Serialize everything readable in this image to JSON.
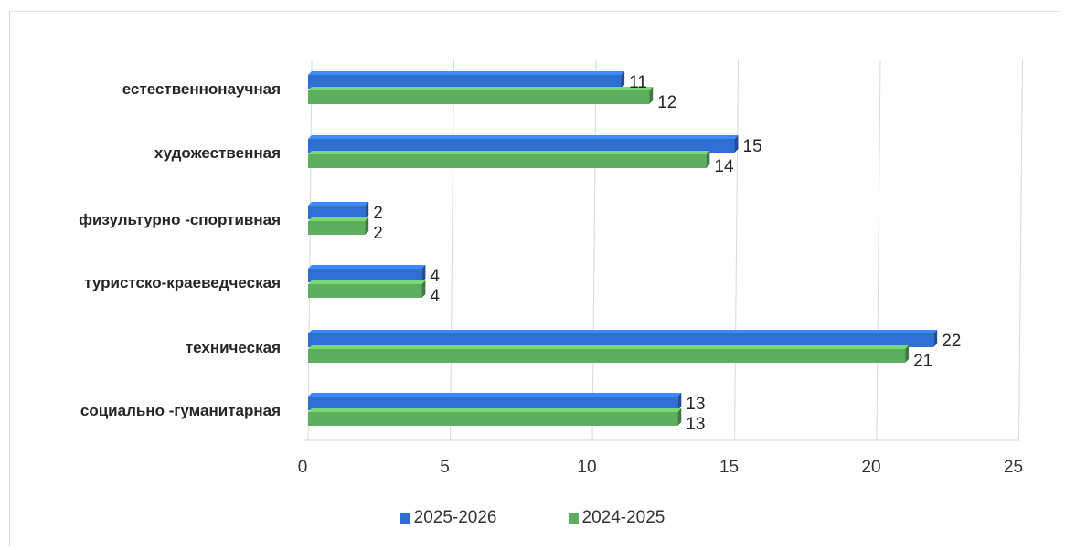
{
  "chart_data": {
    "type": "bar",
    "orientation": "horizontal",
    "title": "",
    "xlabel": "",
    "ylabel": "",
    "categories": [
      "естественнонаучная",
      "художественная",
      "физультурно -спортивная",
      "туристско-краеведческая",
      "техническая",
      "социально -гуманитарная"
    ],
    "series": [
      {
        "name": "2025-2026",
        "color": "#2f6fd4",
        "values": [
          11,
          15,
          2,
          4,
          22,
          13
        ],
        "labels": [
          "11",
          "15",
          "2",
          "4",
          "22",
          "13"
        ]
      },
      {
        "name": "2024-2025",
        "color": "#5fae5f",
        "values": [
          12,
          14,
          2,
          4,
          21,
          13
        ],
        "labels": [
          "12",
          "14",
          "2",
          "4",
          "21",
          "13"
        ]
      }
    ],
    "xlim": [
      0,
      25
    ],
    "ticks": [
      0,
      5,
      10,
      15,
      20,
      25
    ],
    "tick_labels": [
      "0",
      "5",
      "10",
      "15",
      "20",
      "25"
    ],
    "grid": "vertical",
    "legend_position": "bottom",
    "style": "3d-bars"
  }
}
